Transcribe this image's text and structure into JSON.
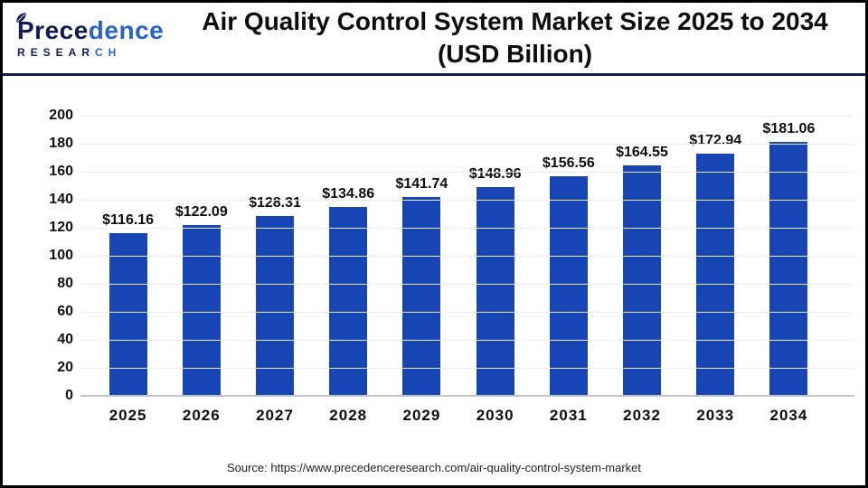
{
  "header": {
    "logo": {
      "brand_dark": "Prece",
      "brand_light": "dence",
      "sub_dark": "RESEAR",
      "sub_light": "CH"
    },
    "title_line1": "Air Quality Control System Market Size 2025 to 2034",
    "title_line2": "(USD Billion)"
  },
  "chart_data": {
    "type": "bar",
    "title": "Air Quality Control System Market Size 2025 to 2034 (USD Billion)",
    "categories": [
      "2025",
      "2026",
      "2027",
      "2028",
      "2029",
      "2030",
      "2031",
      "2032",
      "2033",
      "2034"
    ],
    "values": [
      116.16,
      122.09,
      128.31,
      134.86,
      141.74,
      148.96,
      156.56,
      164.55,
      172.94,
      181.06
    ],
    "data_labels": [
      "$116.16",
      "$122.09",
      "$128.31",
      "$134.86",
      "$141.74",
      "$148.96",
      "$156.56",
      "$164.55",
      "$172.94",
      "$181.06"
    ],
    "label_prefix": "$",
    "xlabel": "",
    "ylabel": "",
    "ylim": [
      0,
      200
    ],
    "yticks": [
      0,
      20,
      40,
      60,
      80,
      100,
      120,
      140,
      160,
      180,
      200
    ],
    "grid": true,
    "legend": null,
    "bar_color": "#1745b4"
  },
  "footer": {
    "source": "Source: https://www.precedenceresearch.com/air-quality-control-system-market"
  },
  "colors": {
    "bar": "#1745b4",
    "divider": "#141b4d",
    "grid": "#ebebeb",
    "axis": "#c2c2c2",
    "logo_dark": "#131c52",
    "logo_light": "#2b62c9"
  }
}
